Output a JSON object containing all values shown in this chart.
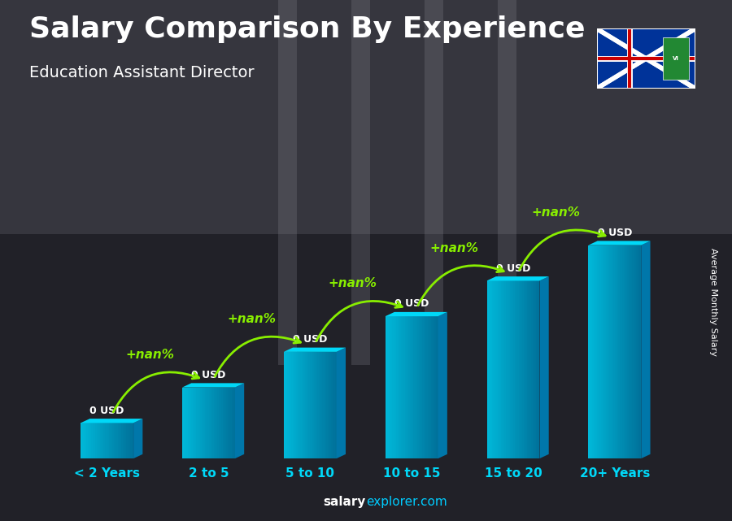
{
  "title": "Salary Comparison By Experience",
  "subtitle": "Education Assistant Director",
  "categories": [
    "< 2 Years",
    "2 to 5",
    "5 to 10",
    "10 to 15",
    "15 to 20",
    "20+ Years"
  ],
  "bar_labels": [
    "0 USD",
    "0 USD",
    "0 USD",
    "0 USD",
    "0 USD",
    "0 USD"
  ],
  "increase_labels": [
    "+nan%",
    "+nan%",
    "+nan%",
    "+nan%",
    "+nan%"
  ],
  "ylabel": "Average Monthly Salary",
  "title_color": "#ffffff",
  "subtitle_color": "#ffffff",
  "label_color": "#ffffff",
  "increase_color": "#88ee00",
  "bar_face_color": "#00b8d9",
  "bar_right_color": "#0077aa",
  "bar_top_color": "#00d8f8",
  "bar_heights": [
    1,
    2,
    3,
    4,
    5,
    6
  ],
  "ylim": [
    0,
    8.5
  ],
  "bg_color": "#3a3a3a",
  "footer_salary_color": "#ffffff",
  "footer_explorer_color": "#00ccff",
  "axis_label_fontsize": 11,
  "title_fontsize": 26,
  "subtitle_fontsize": 14
}
